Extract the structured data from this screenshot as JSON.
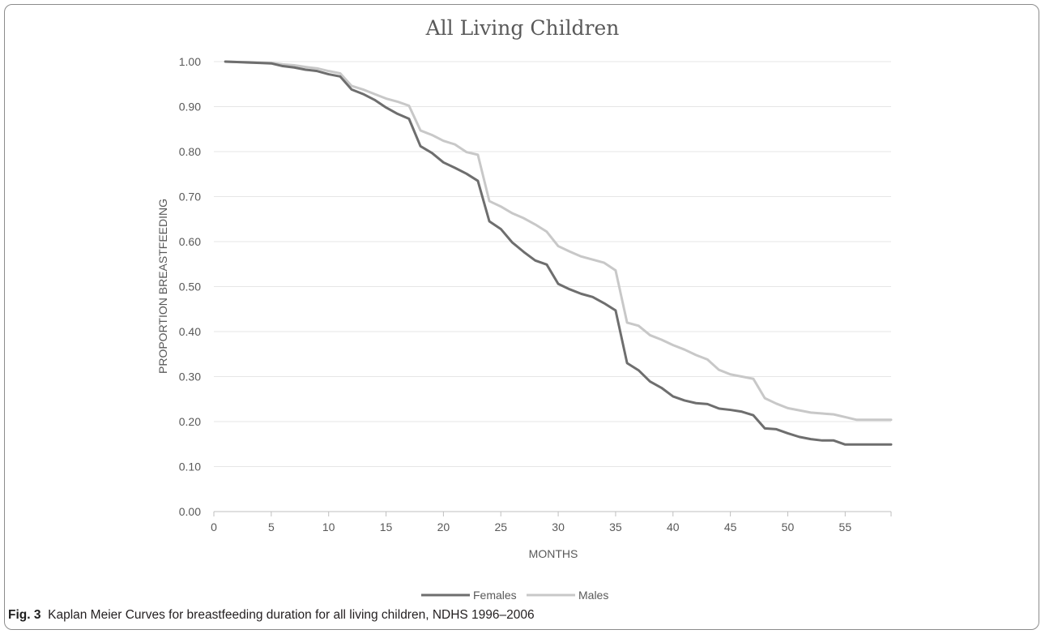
{
  "caption": {
    "label": "Fig. 3",
    "text": "Kaplan Meier Curves for breastfeeding duration for all living children, NDHS 1996–2006"
  },
  "chart_data": {
    "type": "line",
    "title": "All Living Children",
    "xlabel": "MONTHS",
    "ylabel": "PROPORTION BREASTFEEDING",
    "xlim": [
      0,
      59
    ],
    "ylim": [
      0,
      1
    ],
    "xticks": [
      0,
      5,
      10,
      15,
      20,
      25,
      30,
      35,
      40,
      45,
      50,
      55
    ],
    "yticks": [
      0,
      0.1,
      0.2,
      0.3,
      0.4,
      0.5,
      0.6,
      0.7,
      0.8,
      0.9,
      1.0
    ],
    "ytick_labels": [
      "0.00",
      "0.10",
      "0.20",
      "0.30",
      "0.40",
      "0.50",
      "0.60",
      "0.70",
      "0.80",
      "0.90",
      "1.00"
    ],
    "grid": true,
    "legend_position": "bottom",
    "colors": {
      "Females": "#6e6e6e",
      "Males": "#c8c8c8"
    },
    "x": [
      1,
      2,
      3,
      4,
      5,
      6,
      7,
      8,
      9,
      10,
      11,
      12,
      13,
      14,
      15,
      16,
      17,
      18,
      19,
      20,
      21,
      22,
      23,
      24,
      25,
      26,
      27,
      28,
      29,
      30,
      31,
      32,
      33,
      34,
      35,
      36,
      37,
      38,
      39,
      40,
      41,
      42,
      43,
      44,
      45,
      46,
      47,
      48,
      49,
      50,
      51,
      52,
      53,
      54,
      55,
      56,
      57,
      58,
      59
    ],
    "series": [
      {
        "name": "Females",
        "values": [
          1.0,
          0.999,
          0.998,
          0.997,
          0.996,
          0.99,
          0.987,
          0.982,
          0.979,
          0.972,
          0.967,
          0.938,
          0.928,
          0.915,
          0.898,
          0.884,
          0.873,
          0.812,
          0.797,
          0.776,
          0.764,
          0.751,
          0.735,
          0.645,
          0.628,
          0.598,
          0.577,
          0.558,
          0.549,
          0.506,
          0.494,
          0.484,
          0.477,
          0.463,
          0.447,
          0.33,
          0.314,
          0.289,
          0.275,
          0.256,
          0.247,
          0.241,
          0.239,
          0.229,
          0.226,
          0.222,
          0.214,
          0.185,
          0.183,
          0.174,
          0.166,
          0.161,
          0.158,
          0.158,
          0.149,
          0.149,
          0.149,
          0.149,
          0.149
        ]
      },
      {
        "name": "Males",
        "values": [
          1.0,
          0.999,
          0.999,
          0.998,
          0.997,
          0.994,
          0.992,
          0.988,
          0.985,
          0.979,
          0.974,
          0.946,
          0.938,
          0.928,
          0.918,
          0.911,
          0.902,
          0.847,
          0.837,
          0.824,
          0.816,
          0.799,
          0.793,
          0.69,
          0.678,
          0.663,
          0.652,
          0.638,
          0.622,
          0.59,
          0.578,
          0.567,
          0.56,
          0.553,
          0.536,
          0.42,
          0.413,
          0.392,
          0.382,
          0.37,
          0.36,
          0.348,
          0.338,
          0.315,
          0.305,
          0.3,
          0.295,
          0.252,
          0.24,
          0.23,
          0.225,
          0.22,
          0.218,
          0.216,
          0.21,
          0.204,
          0.204,
          0.204,
          0.204
        ]
      }
    ]
  }
}
